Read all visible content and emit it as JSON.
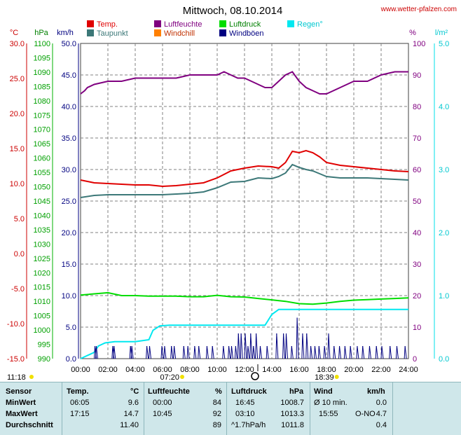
{
  "title": "Mittwoch, 08.10.2014",
  "source": "www.wetter-pfalzen.com",
  "colors": {
    "temp": "#e00000",
    "dew": "#3c7878",
    "humidity": "#800080",
    "pressure": "#00dd00",
    "windchill": "#ff8000",
    "gust": "#000080",
    "rain": "#00e8f0",
    "grid": "#808080"
  },
  "legend": [
    {
      "label": "Temp.",
      "color": "#e00000",
      "text_color": "#e00000"
    },
    {
      "label": "Taupunkt",
      "color": "#3c7878",
      "text_color": "#3c7878"
    },
    {
      "label": "Luftfeuchte",
      "color": "#800080",
      "text_color": "#800080"
    },
    {
      "label": "Windchill",
      "color": "#ff8000",
      "text_color": "#c03000"
    },
    {
      "label": "Luftdruck",
      "color": "#00dd00",
      "text_color": "#008000"
    },
    {
      "label": "Windböen",
      "color": "#000080",
      "text_color": "#000080"
    },
    {
      "label": "Regen°",
      "color": "#00e8f0",
      "text_color": "#00c8d0"
    }
  ],
  "axis_units": {
    "temp": "°C",
    "pressure": "hPa",
    "wind": "km/h",
    "humidity": "%",
    "rain": "l/m²"
  },
  "x_ticks": [
    "00:00",
    "02:00",
    "04:00",
    "06:00",
    "08:00",
    "10:00",
    "12:00",
    "14:00",
    "16:00",
    "18:00",
    "20:00",
    "22:00",
    "24:00"
  ],
  "temp_ticks": [
    "30.0",
    "25.0",
    "20.0",
    "15.0",
    "10.0",
    "5.0",
    "0.0",
    "-5.0",
    "-10.0",
    "-15.0"
  ],
  "pressure_ticks": [
    "1100",
    "1095",
    "1090",
    "1085",
    "1080",
    "1075",
    "1070",
    "1065",
    "1060",
    "1055",
    "1050",
    "1045",
    "1040",
    "1035",
    "1030",
    "1025",
    "1020",
    "1015",
    "1010",
    "1005",
    "1000",
    "995",
    "990"
  ],
  "wind_ticks": [
    "50.0",
    "45.0",
    "40.0",
    "35.0",
    "30.0",
    "25.0",
    "20.0",
    "15.0",
    "10.0",
    "5.0",
    "0.0"
  ],
  "humidity_ticks": [
    "100",
    "90",
    "80",
    "70",
    "60",
    "50",
    "40",
    "30",
    "20",
    "10",
    "0"
  ],
  "rain_ticks": [
    "5.0",
    "4.0",
    "3.0",
    "2.0",
    "1.0",
    "0.0"
  ],
  "sun": {
    "sunrise": "07:20",
    "sunset": "18:39",
    "extra_time": "11:18"
  },
  "chart_data": {
    "type": "line",
    "title": "Mittwoch, 08.10.2014",
    "x_unit": "hour of day",
    "xlim": [
      0,
      24
    ],
    "axes": {
      "temp_c": [
        -15,
        30
      ],
      "pressure_hpa": [
        990,
        1100
      ],
      "wind_kmh": [
        0,
        50
      ],
      "humidity_pct": [
        0,
        100
      ],
      "rain_lm2": [
        0,
        5
      ]
    },
    "grid": true,
    "series": [
      {
        "name": "Temp.",
        "axis": "temp_c",
        "x": [
          0,
          0.5,
          1,
          2,
          3,
          4,
          5,
          6,
          7,
          8,
          9,
          10,
          11,
          12,
          13,
          14,
          14.5,
          15,
          15.5,
          16,
          16.5,
          17,
          17.5,
          18,
          19,
          20,
          21,
          22,
          23,
          24
        ],
        "y": [
          10.5,
          10.3,
          10.1,
          10.0,
          9.9,
          9.8,
          9.8,
          9.6,
          9.7,
          9.9,
          10.1,
          10.8,
          11.8,
          12.2,
          12.5,
          12.4,
          12.2,
          13.0,
          14.6,
          14.4,
          14.7,
          14.4,
          13.8,
          13.0,
          12.6,
          12.4,
          12.2,
          12.0,
          11.8,
          11.7
        ]
      },
      {
        "name": "Taupunkt",
        "axis": "temp_c",
        "x": [
          0,
          1,
          2,
          3,
          4,
          5,
          6,
          7,
          8,
          9,
          10,
          11,
          12,
          13,
          14,
          14.5,
          15,
          15.5,
          16,
          16.5,
          17,
          17.5,
          18,
          19,
          20,
          21,
          22,
          23,
          24
        ],
        "y": [
          8.0,
          8.3,
          8.4,
          8.4,
          8.4,
          8.4,
          8.4,
          8.5,
          8.6,
          8.8,
          9.4,
          10.2,
          10.3,
          10.8,
          10.7,
          11.0,
          11.5,
          12.7,
          12.3,
          12.0,
          11.8,
          11.4,
          11.0,
          10.8,
          10.8,
          10.8,
          10.7,
          10.6,
          10.5
        ]
      },
      {
        "name": "Luftfeuchte",
        "axis": "humidity_pct",
        "x": [
          0,
          0.3,
          0.5,
          1,
          2,
          3,
          4,
          5,
          6,
          7,
          8,
          9,
          10,
          10.5,
          11,
          11.5,
          12,
          12.5,
          13,
          13.5,
          14,
          14.5,
          15,
          15.5,
          16,
          16.5,
          17,
          17.5,
          18,
          18.5,
          19,
          20,
          21,
          22,
          23,
          24
        ],
        "y": [
          84,
          85,
          86,
          87,
          88,
          88,
          89,
          89,
          89,
          89,
          90,
          90,
          90,
          91,
          90,
          89,
          89,
          88,
          87,
          86,
          86,
          88,
          90,
          91,
          88,
          86,
          85,
          84,
          84,
          85,
          86,
          88,
          88,
          90,
          91,
          91
        ]
      },
      {
        "name": "Luftdruck",
        "axis": "pressure_hpa",
        "x": [
          0,
          1,
          2,
          3,
          4,
          5,
          6,
          7,
          8,
          9,
          10,
          11,
          12,
          13,
          14,
          15,
          16,
          17,
          18,
          19,
          20,
          21,
          22,
          23,
          24
        ],
        "y": [
          1012.2,
          1012.6,
          1013.0,
          1012.0,
          1012.0,
          1011.8,
          1011.8,
          1011.8,
          1011.6,
          1011.6,
          1012.1,
          1011.6,
          1011.5,
          1011.0,
          1010.5,
          1010.0,
          1009.2,
          1009.0,
          1009.4,
          1010.0,
          1010.4,
          1010.6,
          1010.8,
          1011.0,
          1011.2
        ]
      },
      {
        "name": "Regen°",
        "axis": "rain_lm2",
        "x": [
          0,
          1,
          1.3,
          1.8,
          2.5,
          4,
          5,
          5.3,
          5.8,
          6.5,
          8,
          10,
          12,
          13,
          13.5,
          14,
          14.5,
          15,
          16,
          18,
          20,
          22,
          24
        ],
        "y": [
          0,
          0.1,
          0.2,
          0.25,
          0.27,
          0.27,
          0.3,
          0.45,
          0.52,
          0.53,
          0.53,
          0.53,
          0.53,
          0.53,
          0.53,
          0.7,
          0.78,
          0.78,
          0.78,
          0.78,
          0.78,
          0.78,
          0.78
        ]
      },
      {
        "name": "Windböen",
        "axis": "wind_kmh",
        "style": "spikes",
        "x": [
          1.0,
          1.1,
          2.3,
          2.4,
          3.6,
          3.7,
          4.8,
          5.0,
          5.9,
          6.1,
          6.6,
          6.8,
          7.5,
          7.8,
          8.3,
          8.6,
          9.2,
          9.6,
          10.4,
          10.8,
          11.0,
          11.3,
          11.5,
          11.7,
          12.0,
          12.2,
          12.4,
          12.6,
          12.8,
          13.1,
          13.6,
          14.3,
          14.8,
          15.0,
          15.4,
          15.8,
          16.2,
          16.5,
          16.8,
          17.1,
          17.4,
          17.8,
          18.1,
          18.5,
          18.9,
          19.3,
          19.7,
          20.2,
          20.6,
          21.1,
          21.6,
          22.0,
          22.6,
          23.1,
          23.7
        ],
        "y": [
          2.0,
          2.0,
          2.0,
          2.0,
          2.0,
          2.0,
          2.0,
          2.0,
          2.0,
          2.0,
          2.0,
          2.0,
          2.0,
          2.0,
          2.0,
          2.0,
          2.0,
          2.0,
          2.0,
          2.0,
          2.0,
          2.0,
          4.0,
          4.0,
          4.0,
          2.0,
          4.0,
          2.0,
          4.0,
          2.0,
          2.0,
          4.0,
          4.0,
          4.0,
          2.0,
          6.5,
          4.0,
          4.0,
          2.0,
          2.0,
          2.0,
          2.0,
          4.0,
          2.0,
          2.0,
          2.0,
          2.0,
          2.0,
          2.0,
          2.0,
          2.0,
          2.0,
          2.0,
          2.0,
          2.0
        ]
      }
    ]
  },
  "table": {
    "headers": {
      "sensor": "Sensor",
      "temp": "Temp.",
      "temp_unit": "°C",
      "hum": "Luftfeuchte",
      "hum_unit": "%",
      "press": "Luftdruck",
      "press_unit": "hPa",
      "wind": "Wind",
      "wind_unit": "km/h"
    },
    "rows": [
      {
        "label": "MinWert",
        "t_time": "06:05",
        "t_val": "9.6",
        "h_time": "00:00",
        "h_val": "84",
        "p_time": "16:45",
        "p_val": "1008.7",
        "w_time": "Ø 10 min.",
        "w_val": "0.0"
      },
      {
        "label": "MaxWert",
        "t_time": "17:15",
        "t_val": "14.7",
        "h_time": "10:45",
        "h_val": "92",
        "p_time": "03:10",
        "p_val": "1013.3",
        "w_time": "15:55",
        "w_dir": "O-NO",
        "w_val": "4.7"
      },
      {
        "label": "Durchschnitt",
        "t_time": "",
        "t_val": "11.40",
        "h_time": "",
        "h_val": "89",
        "p_time": "^1.7hPa/h",
        "p_val": "1011.8",
        "w_time": "",
        "w_val": "0.4"
      }
    ]
  }
}
